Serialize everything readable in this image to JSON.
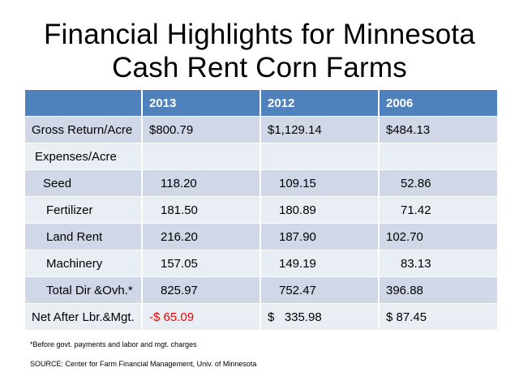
{
  "title": {
    "line1": "Financial Highlights for Minnesota",
    "line2": "Cash Rent Corn Farms"
  },
  "table": {
    "headers": [
      "",
      "2013",
      "2012",
      "2006"
    ],
    "rows": [
      {
        "label": "Gross Return/Acre",
        "c2013": "$800.79",
        "c2012": "$1,129.14",
        "c2006": "$484.13"
      },
      {
        "label": "Expenses/Acre",
        "c2013": "",
        "c2012": "",
        "c2006": ""
      },
      {
        "label": "Seed",
        "c2013": "118.20",
        "c2012": "109.15",
        "c2006": "52.86"
      },
      {
        "label": "Fertilizer",
        "c2013": "181.50",
        "c2012": "180.89",
        "c2006": "71.42"
      },
      {
        "label": "Land Rent",
        "c2013": "216.20",
        "c2012": "187.90",
        "c2006": "102.70"
      },
      {
        "label": "Machinery",
        "c2013": "157.05",
        "c2012": "149.19",
        "c2006": "83.13"
      },
      {
        "label": "Total Dir &Ovh.*",
        "c2013": "825.97",
        "c2012": "752.47",
        "c2006": "396.88"
      },
      {
        "label": "Net After Lbr.&Mgt.",
        "c2013": "-$ 65.09",
        "c2012": "$   335.98",
        "c2006": "$ 87.45"
      }
    ]
  },
  "colors": {
    "header_bg": "#4f81bd",
    "row_dark": "#d0d8e8",
    "row_light": "#e9edf4",
    "negative": "#ff0000"
  },
  "footnote": "*Before govt. payments and labor and mgt. charges",
  "source": "SOURCE:  Center for Farm Financial Management, Univ. of Minnesota"
}
